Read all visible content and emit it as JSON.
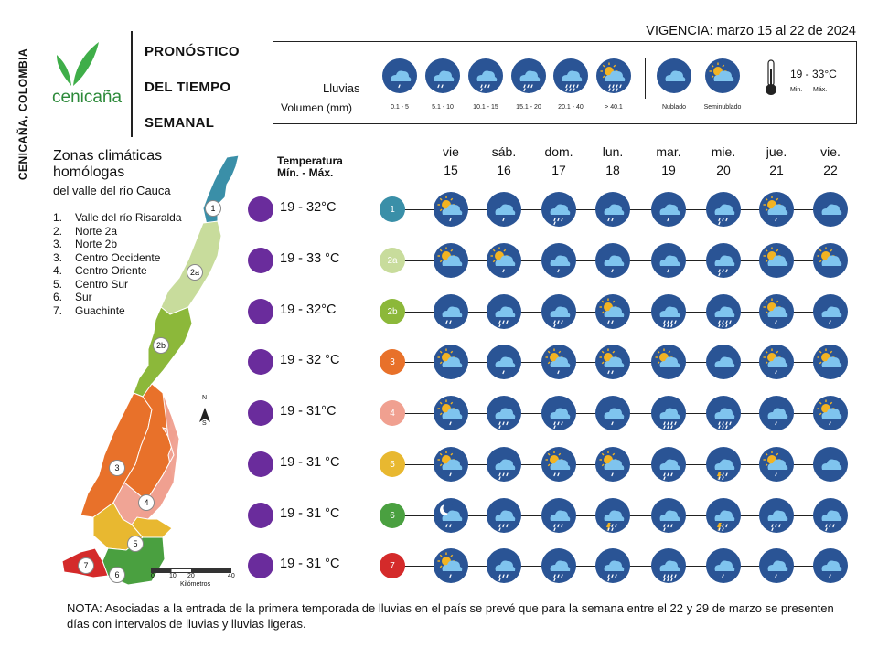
{
  "header": {
    "side_label": "CENICAÑA, COLOMBIA",
    "logo_text": "cenicaña",
    "title_lines": [
      "PRONÓSTICO",
      "DEL TIEMPO",
      "SEMANAL"
    ],
    "vigencia": "VIGENCIA: marzo 15 al 22 de 2024"
  },
  "legend": {
    "rain_label": "Lluvias",
    "volume_label": "Volumen (mm)",
    "rain_ranges": [
      "0.1 - 5",
      "5.1 - 10",
      "10.1 - 15",
      "15.1 - 20",
      "20.1 - 40",
      "> 40.1"
    ],
    "sky": [
      "Nublado",
      "Seminublado"
    ],
    "temp_example": "19 - 33°C",
    "temp_min": "Min.",
    "temp_max": "Máx."
  },
  "zones": {
    "title_line1": "Zonas climáticas",
    "title_line2": "homólogas",
    "subtitle": "del valle del río Cauca",
    "items": [
      {
        "n": "1.",
        "name": "Valle del río Risaralda"
      },
      {
        "n": "2.",
        "name": "Norte 2a"
      },
      {
        "n": "3.",
        "name": "Norte 2b"
      },
      {
        "n": "3.",
        "name": "Centro Occidente"
      },
      {
        "n": "4.",
        "name": "Centro Oriente"
      },
      {
        "n": "5.",
        "name": "Centro Sur"
      },
      {
        "n": "6.",
        "name": "Sur"
      },
      {
        "n": "7.",
        "name": "Guachinte"
      }
    ],
    "map_labels": [
      "1",
      "2a",
      "2b",
      "3",
      "4",
      "5",
      "6",
      "7"
    ],
    "compass_n": "N",
    "compass_s": "S",
    "scale_ticks": [
      "0",
      "10",
      "20",
      "40"
    ],
    "scale_unit": "Kilómetros"
  },
  "temperature": {
    "header_line1": "Temperatura",
    "header_line2": "Mín. - Máx.",
    "values": [
      "19 - 32°C",
      "19 - 33 °C",
      "19 - 32°C",
      "19 - 32 °C",
      "19 - 31°C",
      "19 - 31 °C",
      "19 - 31 °C",
      "19 - 31 °C"
    ]
  },
  "days": [
    {
      "name": "vie",
      "num": "15"
    },
    {
      "name": "sáb.",
      "num": "16"
    },
    {
      "name": "dom.",
      "num": "17"
    },
    {
      "name": "lun.",
      "num": "18"
    },
    {
      "name": "mar.",
      "num": "19"
    },
    {
      "name": "mie.",
      "num": "20"
    },
    {
      "name": "jue.",
      "num": "21"
    },
    {
      "name": "vie.",
      "num": "22"
    }
  ],
  "forecast": [
    {
      "zone": "1",
      "color": "#3a8fa8",
      "icons": [
        "sun-rain-1",
        "rain-1",
        "rain-3",
        "rain-2",
        "rain-1",
        "rain-3",
        "sun-rain-1",
        "cloud"
      ]
    },
    {
      "zone": "2a",
      "color": "#c8dc9c",
      "icons": [
        "sun-cloud",
        "sun-rain-1",
        "rain-1",
        "rain-1",
        "rain-1",
        "rain-3",
        "sun-cloud",
        "sun-cloud"
      ]
    },
    {
      "zone": "2b",
      "color": "#8cb83a",
      "icons": [
        "rain-2",
        "rain-3",
        "rain-3",
        "sun-rain-2",
        "rain-4",
        "rain-4",
        "sun-rain-1",
        "rain-1"
      ]
    },
    {
      "zone": "3",
      "color": "#e8712a",
      "icons": [
        "sun-cloud",
        "rain-1",
        "sun-rain-1",
        "sun-rain-2",
        "sun-cloud",
        "cloud",
        "sun-rain-1",
        "sun-cloud"
      ]
    },
    {
      "zone": "4",
      "color": "#f0a090",
      "icons": [
        "sun-rain-1",
        "rain-3",
        "rain-3",
        "rain-1",
        "rain-4",
        "rain-4",
        "rain-1",
        "sun-rain-1"
      ]
    },
    {
      "zone": "5",
      "color": "#e8b830",
      "icons": [
        "sun-rain-1",
        "rain-3",
        "sun-rain-2",
        "sun-rain-1",
        "rain-3",
        "storm",
        "sun-rain-1",
        "cloud"
      ]
    },
    {
      "zone": "6",
      "color": "#4aa040",
      "icons": [
        "moon-rain",
        "rain-3",
        "rain-3",
        "storm",
        "rain-3",
        "storm",
        "rain-3",
        "rain-3"
      ]
    },
    {
      "zone": "7",
      "color": "#d42a2a",
      "icons": [
        "sun-rain-1",
        "rain-3",
        "rain-3",
        "rain-3",
        "rain-4",
        "rain-1",
        "rain-1",
        "rain-1"
      ]
    }
  ],
  "note": "NOTA: Asociadas a la entrada de la primera temporada de lluvias en el país se prevé que para la semana entre el 22 y 29 de marzo se presenten días con intervalos de lluvias y lluvias ligeras.",
  "colors": {
    "icon_bg": "#2a5495",
    "cloud": "#7fc4ee",
    "sun": "#f2b322",
    "temp_dot": "#6a2c9c"
  }
}
